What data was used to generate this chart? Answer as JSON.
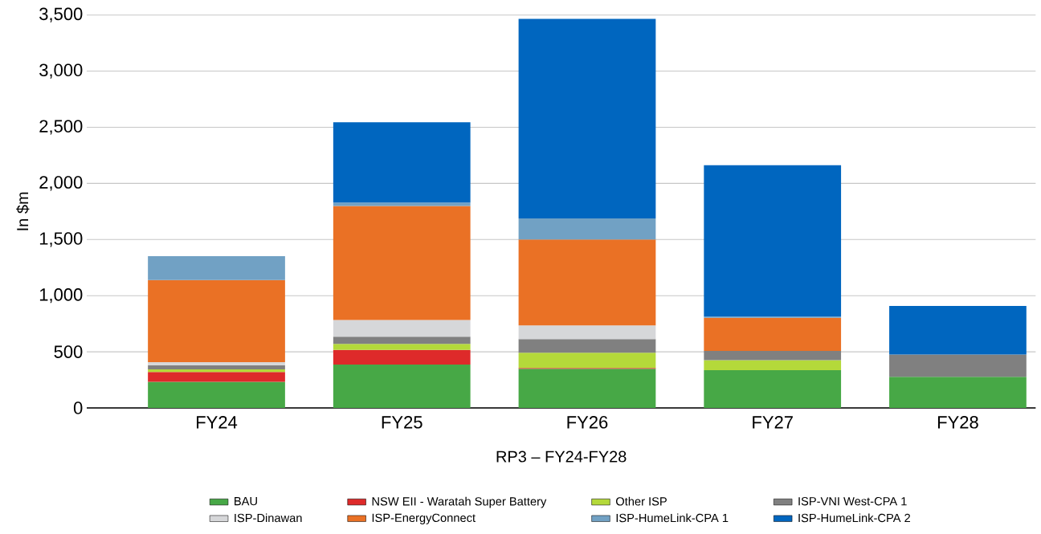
{
  "chart_data": {
    "type": "bar",
    "stacked": true,
    "xlabel": "RP3 – FY24-FY28",
    "ylabel": "In $m",
    "categories": [
      "FY24",
      "FY25",
      "FY26",
      "FY27",
      "FY28"
    ],
    "series": [
      {
        "name": "BAU",
        "color": "#47a846",
        "values": [
          232,
          387,
          349,
          337,
          277
        ]
      },
      {
        "name": "NSW EII - Waratah Super Battery",
        "color": "#de2a2a",
        "values": [
          88,
          129,
          7,
          null,
          null
        ]
      },
      {
        "name": "Other ISP",
        "color": "#b4d93a",
        "values": [
          24,
          55,
          136,
          88,
          null
        ]
      },
      {
        "name": "ISP-VNI West-CPA 1",
        "color": "#808080",
        "values": [
          36,
          64,
          122,
          83,
          198
        ]
      },
      {
        "name": "ISP-Dinawan",
        "color": "#d6d7d9",
        "values": [
          28,
          148,
          121,
          null,
          null
        ]
      },
      {
        "name": "ISP-EnergyConnect",
        "color": "#ea7125",
        "values": [
          731,
          1015,
          765,
          294,
          null
        ]
      },
      {
        "name": "ISP-HumeLink-CPA 1",
        "color": "#71a1c4",
        "values": [
          212,
          31,
          188,
          12,
          null
        ]
      },
      {
        "name": "ISP-HumeLink-CPA 2",
        "color": "#0066bf",
        "values": [
          null,
          716,
          1777,
          1348,
          434
        ]
      }
    ],
    "ylim": [
      0,
      3500
    ],
    "yticks": [
      0,
      500,
      {
        "value": 1000,
        "label": "1,000"
      },
      {
        "value": 1500,
        "label": "1,500"
      },
      {
        "value": 2000,
        "label": "2,000"
      },
      {
        "value": 2500,
        "label": "2,500"
      },
      {
        "value": 3000,
        "label": "3,000"
      },
      {
        "value": 3500,
        "label": "3,500"
      }
    ],
    "grid": "y",
    "legend": "bottom"
  }
}
